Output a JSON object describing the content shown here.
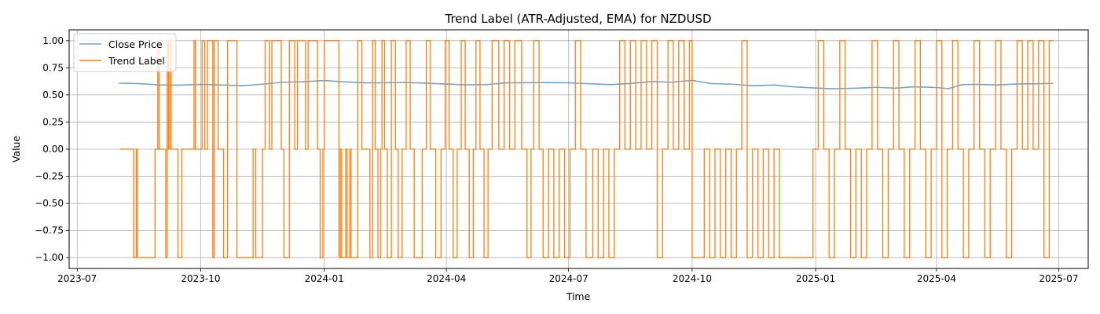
{
  "chart_data": {
    "type": "line",
    "title": "Trend Label (ATR-Adjusted, EMA) for NZDUSD",
    "xlabel": "Time",
    "ylabel": "Value",
    "xlim": [
      "2023-06-25",
      "2025-07-23"
    ],
    "ylim": [
      -1.1,
      1.1
    ],
    "x_ticks": [
      "2023-07-01",
      "2023-10-01",
      "2024-01-01",
      "2024-04-01",
      "2024-07-01",
      "2024-10-01",
      "2025-01-01",
      "2025-04-01",
      "2025-07-01"
    ],
    "x_tick_labels": [
      "2023-07",
      "2023-10",
      "2024-01",
      "2024-04",
      "2024-07",
      "2024-10",
      "2025-01",
      "2025-04",
      "2025-07"
    ],
    "y_ticks": [
      -1.0,
      -0.75,
      -0.5,
      -0.25,
      0.0,
      0.25,
      0.5,
      0.75,
      1.0
    ],
    "y_tick_labels": [
      "−1.00",
      "−0.75",
      "−0.50",
      "−0.25",
      "0.00",
      "0.25",
      "0.50",
      "0.75",
      "1.00"
    ],
    "grid": true,
    "legend_position": "top-left",
    "series": [
      {
        "name": "Close Price",
        "color": "#1f77b4",
        "points": [
          [
            "2023-08-01",
            0.608
          ],
          [
            "2023-08-15",
            0.605
          ],
          [
            "2023-09-01",
            0.592
          ],
          [
            "2023-09-15",
            0.59
          ],
          [
            "2023-10-01",
            0.597
          ],
          [
            "2023-10-15",
            0.592
          ],
          [
            "2023-11-01",
            0.585
          ],
          [
            "2023-11-15",
            0.598
          ],
          [
            "2023-12-01",
            0.617
          ],
          [
            "2023-12-15",
            0.62
          ],
          [
            "2024-01-01",
            0.633
          ],
          [
            "2024-01-15",
            0.621
          ],
          [
            "2024-02-01",
            0.611
          ],
          [
            "2024-02-15",
            0.612
          ],
          [
            "2024-03-01",
            0.615
          ],
          [
            "2024-03-15",
            0.609
          ],
          [
            "2024-04-01",
            0.6
          ],
          [
            "2024-04-15",
            0.593
          ],
          [
            "2024-05-01",
            0.595
          ],
          [
            "2024-05-15",
            0.611
          ],
          [
            "2024-06-01",
            0.613
          ],
          [
            "2024-06-15",
            0.614
          ],
          [
            "2024-07-01",
            0.612
          ],
          [
            "2024-07-15",
            0.604
          ],
          [
            "2024-08-01",
            0.595
          ],
          [
            "2024-08-15",
            0.605
          ],
          [
            "2024-09-01",
            0.623
          ],
          [
            "2024-09-15",
            0.617
          ],
          [
            "2024-10-01",
            0.634
          ],
          [
            "2024-10-15",
            0.605
          ],
          [
            "2024-11-01",
            0.598
          ],
          [
            "2024-11-15",
            0.585
          ],
          [
            "2024-12-01",
            0.591
          ],
          [
            "2024-12-15",
            0.575
          ],
          [
            "2025-01-01",
            0.563
          ],
          [
            "2025-01-15",
            0.557
          ],
          [
            "2025-02-01",
            0.562
          ],
          [
            "2025-02-15",
            0.57
          ],
          [
            "2025-03-01",
            0.562
          ],
          [
            "2025-03-15",
            0.575
          ],
          [
            "2025-04-01",
            0.568
          ],
          [
            "2025-04-10",
            0.558
          ],
          [
            "2025-04-20",
            0.595
          ],
          [
            "2025-05-01",
            0.597
          ],
          [
            "2025-05-15",
            0.592
          ],
          [
            "2025-06-01",
            0.601
          ],
          [
            "2025-06-15",
            0.603
          ],
          [
            "2025-06-27",
            0.606
          ]
        ]
      },
      {
        "name": "Trend Label",
        "color": "#ff7f0e",
        "step_start": "2023-08-02",
        "step_end": "2025-06-27",
        "changes": [
          [
            "2023-08-02",
            0
          ],
          [
            "2023-08-12",
            -1
          ],
          [
            "2023-08-14",
            0
          ],
          [
            "2023-08-15",
            -1
          ],
          [
            "2023-08-28",
            0
          ],
          [
            "2023-08-30",
            1
          ],
          [
            "2023-08-31",
            0
          ],
          [
            "2023-09-05",
            -1
          ],
          [
            "2023-09-06",
            1
          ],
          [
            "2023-09-07",
            0
          ],
          [
            "2023-09-08",
            1
          ],
          [
            "2023-09-09",
            0
          ],
          [
            "2023-09-14",
            -1
          ],
          [
            "2023-09-17",
            0
          ],
          [
            "2023-09-26",
            1
          ],
          [
            "2023-09-27",
            0
          ],
          [
            "2023-10-02",
            1
          ],
          [
            "2023-10-04",
            0
          ],
          [
            "2023-10-06",
            1
          ],
          [
            "2023-10-10",
            -1
          ],
          [
            "2023-10-11",
            1
          ],
          [
            "2023-10-14",
            0
          ],
          [
            "2023-10-18",
            -1
          ],
          [
            "2023-10-21",
            1
          ],
          [
            "2023-10-28",
            -1
          ],
          [
            "2023-11-09",
            0
          ],
          [
            "2023-11-11",
            -1
          ],
          [
            "2023-11-16",
            0
          ],
          [
            "2023-11-18",
            1
          ],
          [
            "2023-11-21",
            0
          ],
          [
            "2023-11-23",
            1
          ],
          [
            "2023-11-30",
            0
          ],
          [
            "2023-12-02",
            -1
          ],
          [
            "2023-12-06",
            1
          ],
          [
            "2023-12-10",
            0
          ],
          [
            "2023-12-12",
            1
          ],
          [
            "2023-12-18",
            0
          ],
          [
            "2023-12-20",
            1
          ],
          [
            "2023-12-27",
            0
          ],
          [
            "2023-12-29",
            -1
          ],
          [
            "2023-12-31",
            0
          ],
          [
            "2024-01-01",
            1
          ],
          [
            "2024-01-12",
            -1
          ],
          [
            "2024-01-13",
            0
          ],
          [
            "2024-01-14",
            -1
          ],
          [
            "2024-01-17",
            0
          ],
          [
            "2024-01-18",
            -1
          ],
          [
            "2024-01-20",
            0
          ],
          [
            "2024-01-21",
            -1
          ],
          [
            "2024-01-26",
            1
          ],
          [
            "2024-01-29",
            0
          ],
          [
            "2024-02-04",
            -1
          ],
          [
            "2024-02-06",
            1
          ],
          [
            "2024-02-08",
            0
          ],
          [
            "2024-02-10",
            -1
          ],
          [
            "2024-02-12",
            0
          ],
          [
            "2024-02-13",
            1
          ],
          [
            "2024-02-15",
            0
          ],
          [
            "2024-02-17",
            -1
          ],
          [
            "2024-02-20",
            1
          ],
          [
            "2024-02-23",
            0
          ],
          [
            "2024-02-25",
            -1
          ],
          [
            "2024-02-28",
            0
          ],
          [
            "2024-03-02",
            1
          ],
          [
            "2024-03-05",
            0
          ],
          [
            "2024-03-08",
            -1
          ],
          [
            "2024-03-14",
            0
          ],
          [
            "2024-03-17",
            1
          ],
          [
            "2024-03-20",
            0
          ],
          [
            "2024-03-24",
            -1
          ],
          [
            "2024-03-28",
            0
          ],
          [
            "2024-03-31",
            1
          ],
          [
            "2024-04-03",
            0
          ],
          [
            "2024-04-06",
            -1
          ],
          [
            "2024-04-09",
            0
          ],
          [
            "2024-04-12",
            1
          ],
          [
            "2024-04-15",
            0
          ],
          [
            "2024-04-18",
            -1
          ],
          [
            "2024-04-21",
            0
          ],
          [
            "2024-04-23",
            1
          ],
          [
            "2024-04-26",
            0
          ],
          [
            "2024-04-29",
            -1
          ],
          [
            "2024-05-02",
            0
          ],
          [
            "2024-05-05",
            1
          ],
          [
            "2024-05-10",
            0
          ],
          [
            "2024-05-14",
            1
          ],
          [
            "2024-05-18",
            0
          ],
          [
            "2024-05-22",
            1
          ],
          [
            "2024-05-27",
            0
          ],
          [
            "2024-05-31",
            -1
          ],
          [
            "2024-06-03",
            0
          ],
          [
            "2024-06-05",
            1
          ],
          [
            "2024-06-09",
            0
          ],
          [
            "2024-06-12",
            -1
          ],
          [
            "2024-06-16",
            0
          ],
          [
            "2024-06-20",
            -1
          ],
          [
            "2024-06-24",
            0
          ],
          [
            "2024-06-28",
            -1
          ],
          [
            "2024-07-02",
            0
          ],
          [
            "2024-07-06",
            1
          ],
          [
            "2024-07-10",
            0
          ],
          [
            "2024-07-14",
            -1
          ],
          [
            "2024-07-19",
            0
          ],
          [
            "2024-07-23",
            -1
          ],
          [
            "2024-07-27",
            0
          ],
          [
            "2024-07-31",
            -1
          ],
          [
            "2024-08-04",
            0
          ],
          [
            "2024-08-08",
            1
          ],
          [
            "2024-08-12",
            0
          ],
          [
            "2024-08-16",
            1
          ],
          [
            "2024-08-20",
            0
          ],
          [
            "2024-08-24",
            1
          ],
          [
            "2024-08-28",
            0
          ],
          [
            "2024-09-01",
            1
          ],
          [
            "2024-09-05",
            -1
          ],
          [
            "2024-09-09",
            0
          ],
          [
            "2024-09-13",
            1
          ],
          [
            "2024-09-17",
            0
          ],
          [
            "2024-09-21",
            1
          ],
          [
            "2024-09-25",
            0
          ],
          [
            "2024-09-29",
            1
          ],
          [
            "2024-10-01",
            -1
          ],
          [
            "2024-10-10",
            0
          ],
          [
            "2024-10-14",
            -1
          ],
          [
            "2024-10-18",
            0
          ],
          [
            "2024-10-22",
            -1
          ],
          [
            "2024-10-26",
            0
          ],
          [
            "2024-10-30",
            -1
          ],
          [
            "2024-11-03",
            0
          ],
          [
            "2024-11-07",
            1
          ],
          [
            "2024-11-11",
            -1
          ],
          [
            "2024-11-15",
            0
          ],
          [
            "2024-11-19",
            -1
          ],
          [
            "2024-11-23",
            0
          ],
          [
            "2024-11-27",
            -1
          ],
          [
            "2024-12-01",
            0
          ],
          [
            "2024-12-05",
            -1
          ],
          [
            "2024-12-30",
            0
          ],
          [
            "2025-01-03",
            1
          ],
          [
            "2025-01-07",
            0
          ],
          [
            "2025-01-11",
            -1
          ],
          [
            "2025-01-15",
            0
          ],
          [
            "2025-01-19",
            1
          ],
          [
            "2025-01-23",
            0
          ],
          [
            "2025-01-27",
            -1
          ],
          [
            "2025-01-31",
            0
          ],
          [
            "2025-02-04",
            -1
          ],
          [
            "2025-02-08",
            0
          ],
          [
            "2025-02-12",
            1
          ],
          [
            "2025-02-16",
            0
          ],
          [
            "2025-02-20",
            -1
          ],
          [
            "2025-02-24",
            0
          ],
          [
            "2025-02-28",
            1
          ],
          [
            "2025-03-04",
            0
          ],
          [
            "2025-03-08",
            -1
          ],
          [
            "2025-03-12",
            0
          ],
          [
            "2025-03-16",
            1
          ],
          [
            "2025-03-20",
            0
          ],
          [
            "2025-03-24",
            -1
          ],
          [
            "2025-03-28",
            0
          ],
          [
            "2025-04-01",
            1
          ],
          [
            "2025-04-05",
            -1
          ],
          [
            "2025-04-09",
            0
          ],
          [
            "2025-04-13",
            1
          ],
          [
            "2025-04-17",
            0
          ],
          [
            "2025-04-21",
            -1
          ],
          [
            "2025-04-25",
            0
          ],
          [
            "2025-04-29",
            1
          ],
          [
            "2025-05-03",
            0
          ],
          [
            "2025-05-07",
            -1
          ],
          [
            "2025-05-11",
            0
          ],
          [
            "2025-05-15",
            1
          ],
          [
            "2025-05-19",
            0
          ],
          [
            "2025-05-23",
            -1
          ],
          [
            "2025-05-27",
            0
          ],
          [
            "2025-05-31",
            1
          ],
          [
            "2025-06-04",
            0
          ],
          [
            "2025-06-08",
            1
          ],
          [
            "2025-06-12",
            0
          ],
          [
            "2025-06-16",
            1
          ],
          [
            "2025-06-20",
            -1
          ],
          [
            "2025-06-24",
            1
          ]
        ]
      }
    ]
  }
}
